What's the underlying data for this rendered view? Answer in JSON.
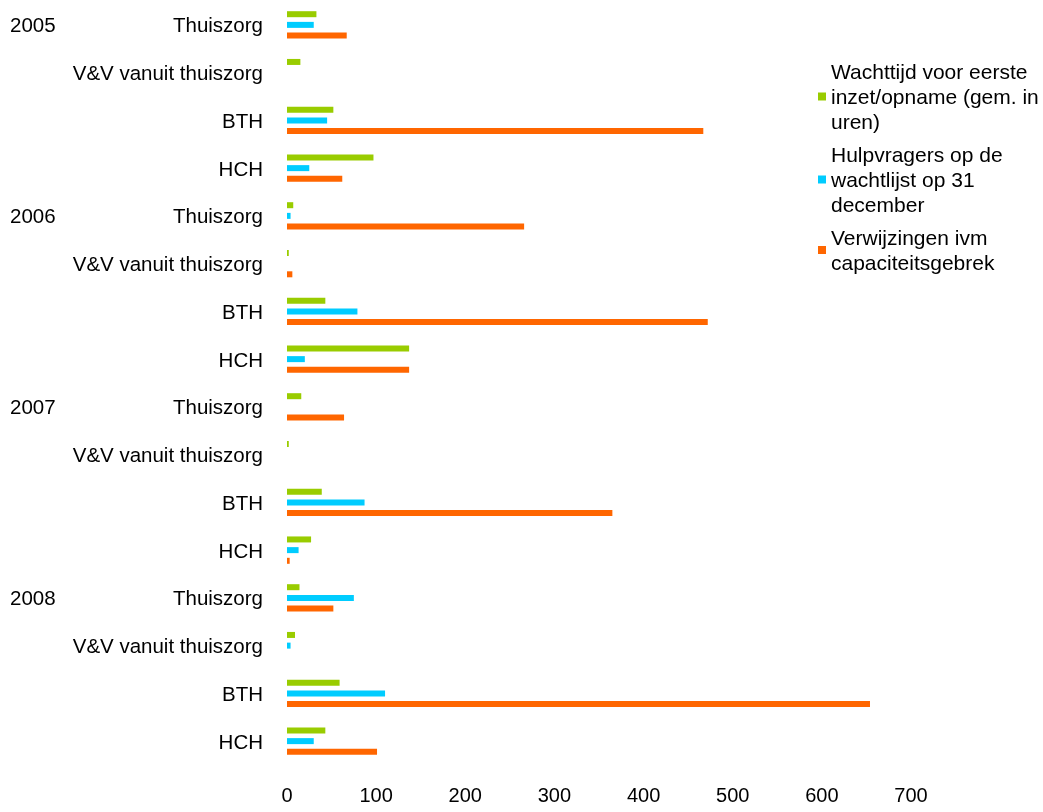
{
  "chart_data": {
    "type": "bar",
    "orientation": "horizontal",
    "categories": [
      "Thuiszorg",
      "V&V vanuit thuiszorg",
      "BTH",
      "HCH",
      "Thuiszorg",
      "V&V vanuit thuiszorg",
      "BTH",
      "HCH",
      "Thuiszorg",
      "V&V vanuit thuiszorg",
      "BTH",
      "HCH",
      "Thuiszorg",
      "V&V vanuit thuiszorg",
      "BTH",
      "HCH"
    ],
    "annotations": [
      "2005",
      "2006",
      "2007",
      "2008"
    ],
    "series": [
      {
        "name": "Wachttijd voor eerste inzet/opname (gem. in uren)",
        "color": "#99cc00",
        "values": [
          33,
          15,
          52,
          97,
          7,
          2,
          43,
          137,
          16,
          2,
          39,
          27,
          14,
          9,
          59,
          43
        ]
      },
      {
        "name": "Hulpvragers op de wachtlijst op 31 december",
        "color": "#00ccff",
        "values": [
          30,
          null,
          45,
          25,
          4,
          null,
          79,
          20,
          null,
          null,
          87,
          13,
          75,
          4,
          110,
          30
        ]
      },
      {
        "name": "Verwijzingen ivm capaciteitsgebrek",
        "color": "#ff6600",
        "values": [
          67,
          null,
          467,
          62,
          266,
          6,
          472,
          137,
          64,
          null,
          365,
          3,
          52,
          null,
          654,
          101
        ]
      }
    ],
    "xlim": [
      0,
      700
    ],
    "xticks": [
      0,
      100,
      200,
      300,
      400,
      500,
      600,
      700
    ],
    "legend": "top right"
  }
}
